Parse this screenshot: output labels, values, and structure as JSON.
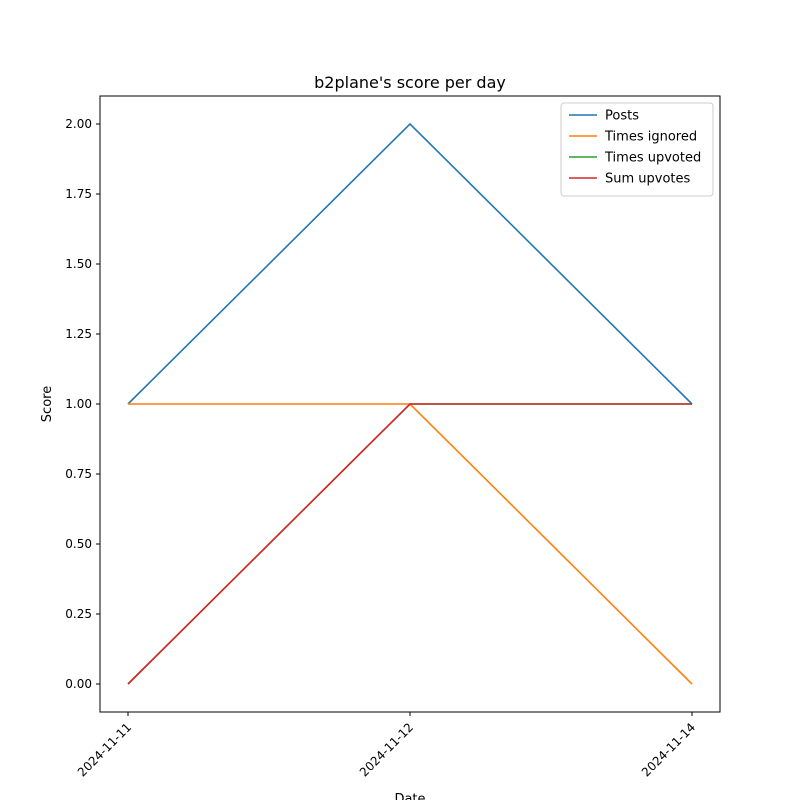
{
  "chart_data": {
    "type": "line",
    "title": "b2plane's score per day",
    "xlabel": "Date",
    "ylabel": "Score",
    "x": [
      "2024-11-11",
      "2024-11-12",
      "2024-11-14"
    ],
    "ylim": [
      -0.1,
      2.1
    ],
    "yticks": [
      "0.00",
      "0.25",
      "0.50",
      "0.75",
      "1.00",
      "1.25",
      "1.50",
      "1.75",
      "2.00"
    ],
    "grid": false,
    "legend_position": "top-right",
    "series": [
      {
        "name": "Posts",
        "color": "#1f77b4",
        "values": [
          1,
          2,
          1
        ]
      },
      {
        "name": "Times ignored",
        "color": "#ff7f0e",
        "values": [
          1,
          1,
          0
        ]
      },
      {
        "name": "Times upvoted",
        "color": "#2ca02c",
        "values": [
          0,
          1,
          1
        ]
      },
      {
        "name": "Sum upvotes",
        "color": "#d62728",
        "values": [
          0,
          1,
          1
        ]
      }
    ]
  }
}
